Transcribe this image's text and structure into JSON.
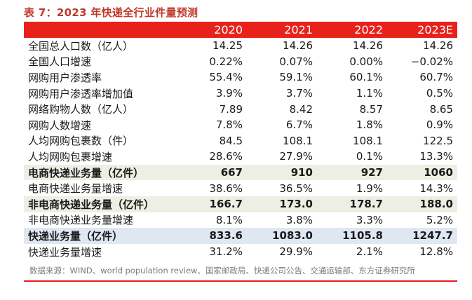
{
  "title": "表 7：2023 年快递全行业件量预测",
  "columns": [
    "",
    "2020",
    "2021",
    "2022",
    "2023E"
  ],
  "rows": [
    {
      "label": "全国总人口数（亿人）",
      "values": [
        "14.25",
        "14.26",
        "14.26",
        "14.26"
      ],
      "style": ""
    },
    {
      "label": "全国人口增速",
      "values": [
        "0.22%",
        "0.07%",
        "0.00%",
        "−0.02%"
      ],
      "style": ""
    },
    {
      "label": "网购用户渗透率",
      "values": [
        "55.4%",
        "59.1%",
        "60.1%",
        "60.7%"
      ],
      "style": ""
    },
    {
      "label": "网购用户渗透率增加值",
      "values": [
        "3.9%",
        "3.7%",
        "1.1%",
        "0.5%"
      ],
      "style": ""
    },
    {
      "label": "网络购物人数（亿人）",
      "values": [
        "7.89",
        "8.42",
        "8.57",
        "8.65"
      ],
      "style": ""
    },
    {
      "label": "网购人数增速",
      "values": [
        "7.8%",
        "6.7%",
        "1.8%",
        "0.9%"
      ],
      "style": ""
    },
    {
      "label": "人均网购包裹数（件）",
      "values": [
        "84.5",
        "108.1",
        "108.1",
        "122.5"
      ],
      "style": ""
    },
    {
      "label": "人均网购包裹增速",
      "values": [
        "28.6%",
        "27.9%",
        "0.1%",
        "13.3%"
      ],
      "style": ""
    },
    {
      "label": "电商快递业务量（亿件）",
      "values": [
        "667",
        "910",
        "927",
        "1060"
      ],
      "style": "hl"
    },
    {
      "label": "电商快递业务量增速",
      "values": [
        "38.6%",
        "36.5%",
        "1.9%",
        "14.3%"
      ],
      "style": ""
    },
    {
      "label": "非电商快递业务量（亿件）",
      "values": [
        "166.7",
        "173.0",
        "178.7",
        "188.0"
      ],
      "style": "hl"
    },
    {
      "label": "非电商快递业务量增速",
      "values": [
        "8.1%",
        "3.8%",
        "3.3%",
        "5.2%"
      ],
      "style": ""
    },
    {
      "label": "快递业务量（亿件）",
      "values": [
        "833.6",
        "1083.0",
        "1105.8",
        "1247.7"
      ],
      "style": "hl-blue"
    },
    {
      "label": "快递业务量增速",
      "values": [
        "31.2%",
        "29.9%",
        "2.1%",
        "12.8%"
      ],
      "style": ""
    }
  ],
  "source": "数据来源：WIND、world  population review、国家邮政局、快递公司公告、交通运输部、东方证券研究所",
  "colors": {
    "header_bg": "#e8211b",
    "title": "#c0392b",
    "highlight": "#efeee4",
    "highlight_blue": "#dfe7f2"
  }
}
